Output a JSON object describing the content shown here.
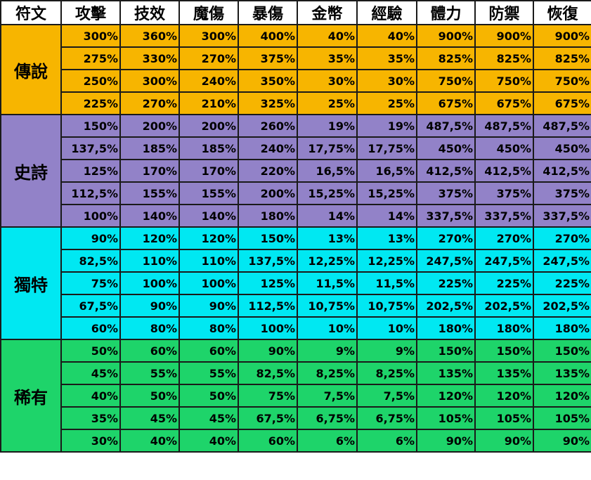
{
  "headers": [
    "符文",
    "攻擊",
    "技效",
    "魔傷",
    "暴傷",
    "金幣",
    "經驗",
    "體力",
    "防禦",
    "恢復"
  ],
  "tiers": [
    {
      "name": "傳說",
      "color": "#f7b500",
      "rows": [
        [
          "300%",
          "360%",
          "300%",
          "400%",
          "40%",
          "40%",
          "900%",
          "900%",
          "900%"
        ],
        [
          "275%",
          "330%",
          "270%",
          "375%",
          "35%",
          "35%",
          "825%",
          "825%",
          "825%"
        ],
        [
          "250%",
          "300%",
          "240%",
          "350%",
          "30%",
          "30%",
          "750%",
          "750%",
          "750%"
        ],
        [
          "225%",
          "270%",
          "210%",
          "325%",
          "25%",
          "25%",
          "675%",
          "675%",
          "675%"
        ]
      ]
    },
    {
      "name": "史詩",
      "color": "#9282c8",
      "rows": [
        [
          "150%",
          "200%",
          "200%",
          "260%",
          "19%",
          "19%",
          "487,5%",
          "487,5%",
          "487,5%"
        ],
        [
          "137,5%",
          "185%",
          "185%",
          "240%",
          "17,75%",
          "17,75%",
          "450%",
          "450%",
          "450%"
        ],
        [
          "125%",
          "170%",
          "170%",
          "220%",
          "16,5%",
          "16,5%",
          "412,5%",
          "412,5%",
          "412,5%"
        ],
        [
          "112,5%",
          "155%",
          "155%",
          "200%",
          "15,25%",
          "15,25%",
          "375%",
          "375%",
          "375%"
        ],
        [
          "100%",
          "140%",
          "140%",
          "180%",
          "14%",
          "14%",
          "337,5%",
          "337,5%",
          "337,5%"
        ]
      ]
    },
    {
      "name": "獨特",
      "color": "#00e8f2",
      "rows": [
        [
          "90%",
          "120%",
          "120%",
          "150%",
          "13%",
          "13%",
          "270%",
          "270%",
          "270%"
        ],
        [
          "82,5%",
          "110%",
          "110%",
          "137,5%",
          "12,25%",
          "12,25%",
          "247,5%",
          "247,5%",
          "247,5%"
        ],
        [
          "75%",
          "100%",
          "100%",
          "125%",
          "11,5%",
          "11,5%",
          "225%",
          "225%",
          "225%"
        ],
        [
          "67,5%",
          "90%",
          "90%",
          "112,5%",
          "10,75%",
          "10,75%",
          "202,5%",
          "202,5%",
          "202,5%"
        ],
        [
          "60%",
          "80%",
          "80%",
          "100%",
          "10%",
          "10%",
          "180%",
          "180%",
          "180%"
        ]
      ]
    },
    {
      "name": "稀有",
      "color": "#1ed46a",
      "rows": [
        [
          "50%",
          "60%",
          "60%",
          "90%",
          "9%",
          "9%",
          "150%",
          "150%",
          "150%"
        ],
        [
          "45%",
          "55%",
          "55%",
          "82,5%",
          "8,25%",
          "8,25%",
          "135%",
          "135%",
          "135%"
        ],
        [
          "40%",
          "50%",
          "50%",
          "75%",
          "7,5%",
          "7,5%",
          "120%",
          "120%",
          "120%"
        ],
        [
          "35%",
          "45%",
          "45%",
          "67,5%",
          "6,75%",
          "6,75%",
          "105%",
          "105%",
          "105%"
        ],
        [
          "30%",
          "40%",
          "40%",
          "60%",
          "6%",
          "6%",
          "90%",
          "90%",
          "90%"
        ]
      ]
    }
  ]
}
